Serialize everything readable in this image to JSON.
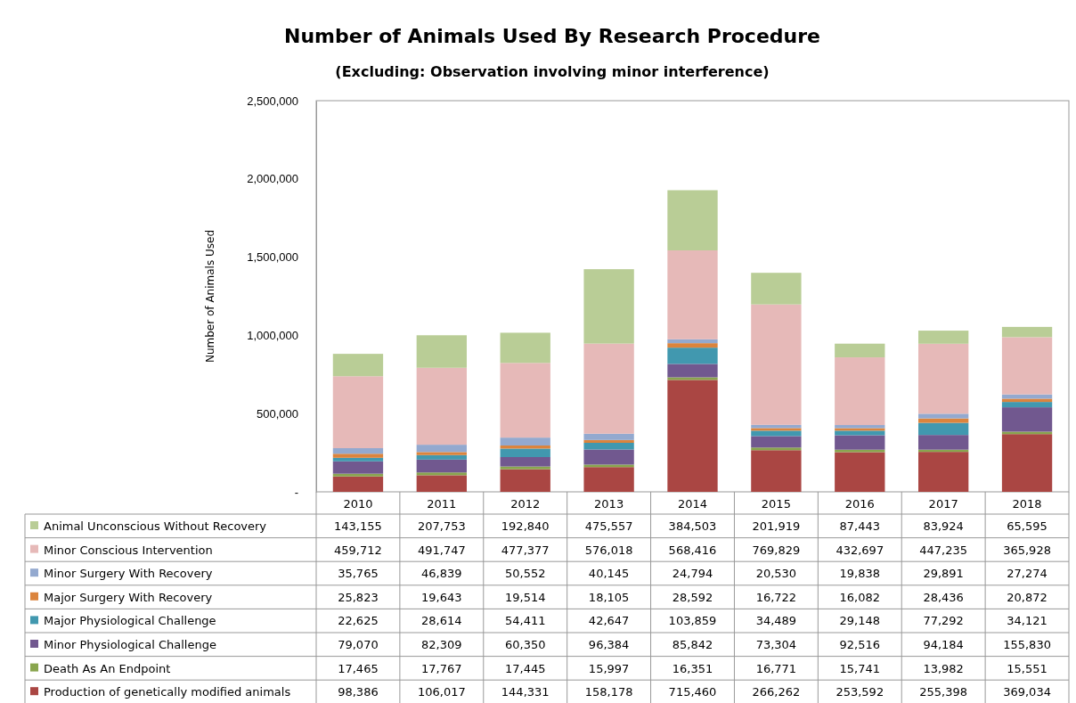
{
  "chart_data": {
    "type": "bar",
    "stacked": true,
    "title": "Number of Animals Used By Research Procedure",
    "subtitle": "(Excluding:  Observation involving minor interference)",
    "ylabel": "Number of Animals Used",
    "categories": [
      "2010",
      "2011",
      "2012",
      "2013",
      "2014",
      "2015",
      "2016",
      "2017",
      "2018"
    ],
    "ylim": [
      0,
      2500000
    ],
    "yticks": [
      {
        "value": 0,
        "label": "-"
      },
      {
        "value": 500000,
        "label": "500,000"
      },
      {
        "value": 1000000,
        "label": "1,000,000"
      },
      {
        "value": 1500000,
        "label": "1,500,000"
      },
      {
        "value": 2000000,
        "label": "2,000,000"
      },
      {
        "value": 2500000,
        "label": "2,500,000"
      }
    ],
    "grid": false,
    "legend": "bottom",
    "series": [
      {
        "name": "Production of genetically modified animals",
        "color": "#aa4643",
        "values": [
          98386,
          106017,
          144331,
          158178,
          715460,
          266262,
          253592,
          255398,
          369034
        ],
        "value_labels": [
          "98,386",
          "106,017",
          "144,331",
          "158,178",
          "715,460",
          "266,262",
          "253,592",
          "255,398",
          "369,034"
        ]
      },
      {
        "name": "Death As An Endpoint",
        "color": "#89a54e",
        "values": [
          17465,
          17767,
          17445,
          15997,
          16351,
          16771,
          15741,
          13982,
          15551
        ],
        "value_labels": [
          "17,465",
          "17,767",
          "17,445",
          "15,997",
          "16,351",
          "16,771",
          "15,741",
          "13,982",
          "15,551"
        ]
      },
      {
        "name": "Minor Physiological Challenge",
        "color": "#71588f",
        "values": [
          79070,
          82309,
          60350,
          96384,
          85842,
          73304,
          92516,
          94184,
          155830
        ],
        "value_labels": [
          "79,070",
          "82,309",
          "60,350",
          "96,384",
          "85,842",
          "73,304",
          "92,516",
          "94,184",
          "155,830"
        ]
      },
      {
        "name": "Major Physiological Challenge",
        "color": "#4198af",
        "values": [
          22625,
          28614,
          54411,
          42647,
          103859,
          34489,
          29148,
          77292,
          34121
        ],
        "value_labels": [
          "22,625",
          "28,614",
          "54,411",
          "42,647",
          "103,859",
          "34,489",
          "29,148",
          "77,292",
          "34,121"
        ]
      },
      {
        "name": "Major Surgery With Recovery",
        "color": "#db843d",
        "values": [
          25823,
          19643,
          19514,
          18105,
          28592,
          16722,
          16082,
          28436,
          20872
        ],
        "value_labels": [
          "25,823",
          "19,643",
          "19,514",
          "18,105",
          "28,592",
          "16,722",
          "16,082",
          "28,436",
          "20,872"
        ]
      },
      {
        "name": "Minor Surgery With Recovery",
        "color": "#93a9cf",
        "values": [
          35765,
          46839,
          50552,
          40145,
          24794,
          20530,
          19838,
          29891,
          27274
        ],
        "value_labels": [
          "35,765",
          "46,839",
          "50,552",
          "40,145",
          "24,794",
          "20,530",
          "19,838",
          "29,891",
          "27,274"
        ]
      },
      {
        "name": "Minor Conscious Intervention",
        "color": "#e6b9b8",
        "values": [
          459712,
          491747,
          477377,
          576018,
          568416,
          769829,
          432697,
          447235,
          365928
        ],
        "value_labels": [
          "459,712",
          "491,747",
          "477,377",
          "576,018",
          "568,416",
          "769,829",
          "432,697",
          "447,235",
          "365,928"
        ]
      },
      {
        "name": "Animal Unconscious Without Recovery",
        "color": "#b9cd96",
        "values": [
          143155,
          207753,
          192840,
          475557,
          384503,
          201919,
          87443,
          83924,
          65595
        ],
        "value_labels": [
          "143,155",
          "207,753",
          "192,840",
          "475,557",
          "384,503",
          "201,919",
          "87,443",
          "83,924",
          "65,595"
        ]
      }
    ]
  }
}
